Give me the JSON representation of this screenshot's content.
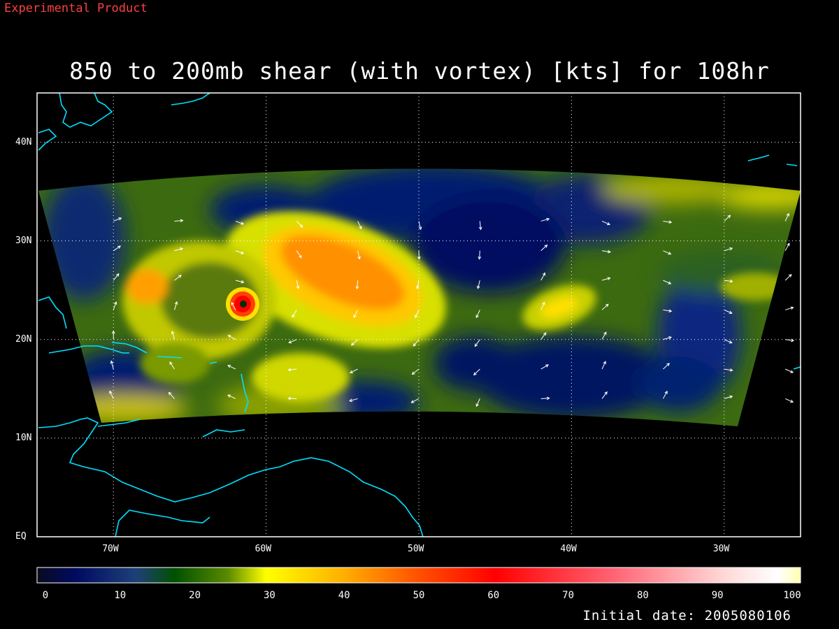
{
  "header": {
    "product_tag": "Experimental Product",
    "title": "850 to 200mb shear (with vortex) [kts] for 108hr"
  },
  "colors": {
    "tag": "#ff4040",
    "coast": "#00e0ff",
    "frame": "#ffffff",
    "grid": "#ffffff",
    "vectors": "#ffffff"
  },
  "map": {
    "projection": "cylindrical",
    "lon_range": [
      -75,
      -25
    ],
    "lat_range": [
      0,
      45
    ],
    "lon_ticks": [
      {
        "value": -70,
        "label": "70W"
      },
      {
        "value": -60,
        "label": "60W"
      },
      {
        "value": -50,
        "label": "50W"
      },
      {
        "value": -40,
        "label": "40W"
      },
      {
        "value": -30,
        "label": "30W"
      }
    ],
    "lat_ticks": [
      {
        "value": 0,
        "label": "EQ"
      },
      {
        "value": 10,
        "label": "10N"
      },
      {
        "value": 20,
        "label": "20N"
      },
      {
        "value": 30,
        "label": "30N"
      },
      {
        "value": 40,
        "label": "40N"
      }
    ],
    "vortex_center": {
      "lon": -61.6,
      "lat": 23.5
    }
  },
  "colorbar": {
    "min": 0,
    "max": 100,
    "labels": [
      "0",
      "10",
      "20",
      "30",
      "40",
      "50",
      "60",
      "70",
      "80",
      "90",
      "100"
    ]
  },
  "footer": {
    "initial_date": "Initial date: 2005080106"
  }
}
